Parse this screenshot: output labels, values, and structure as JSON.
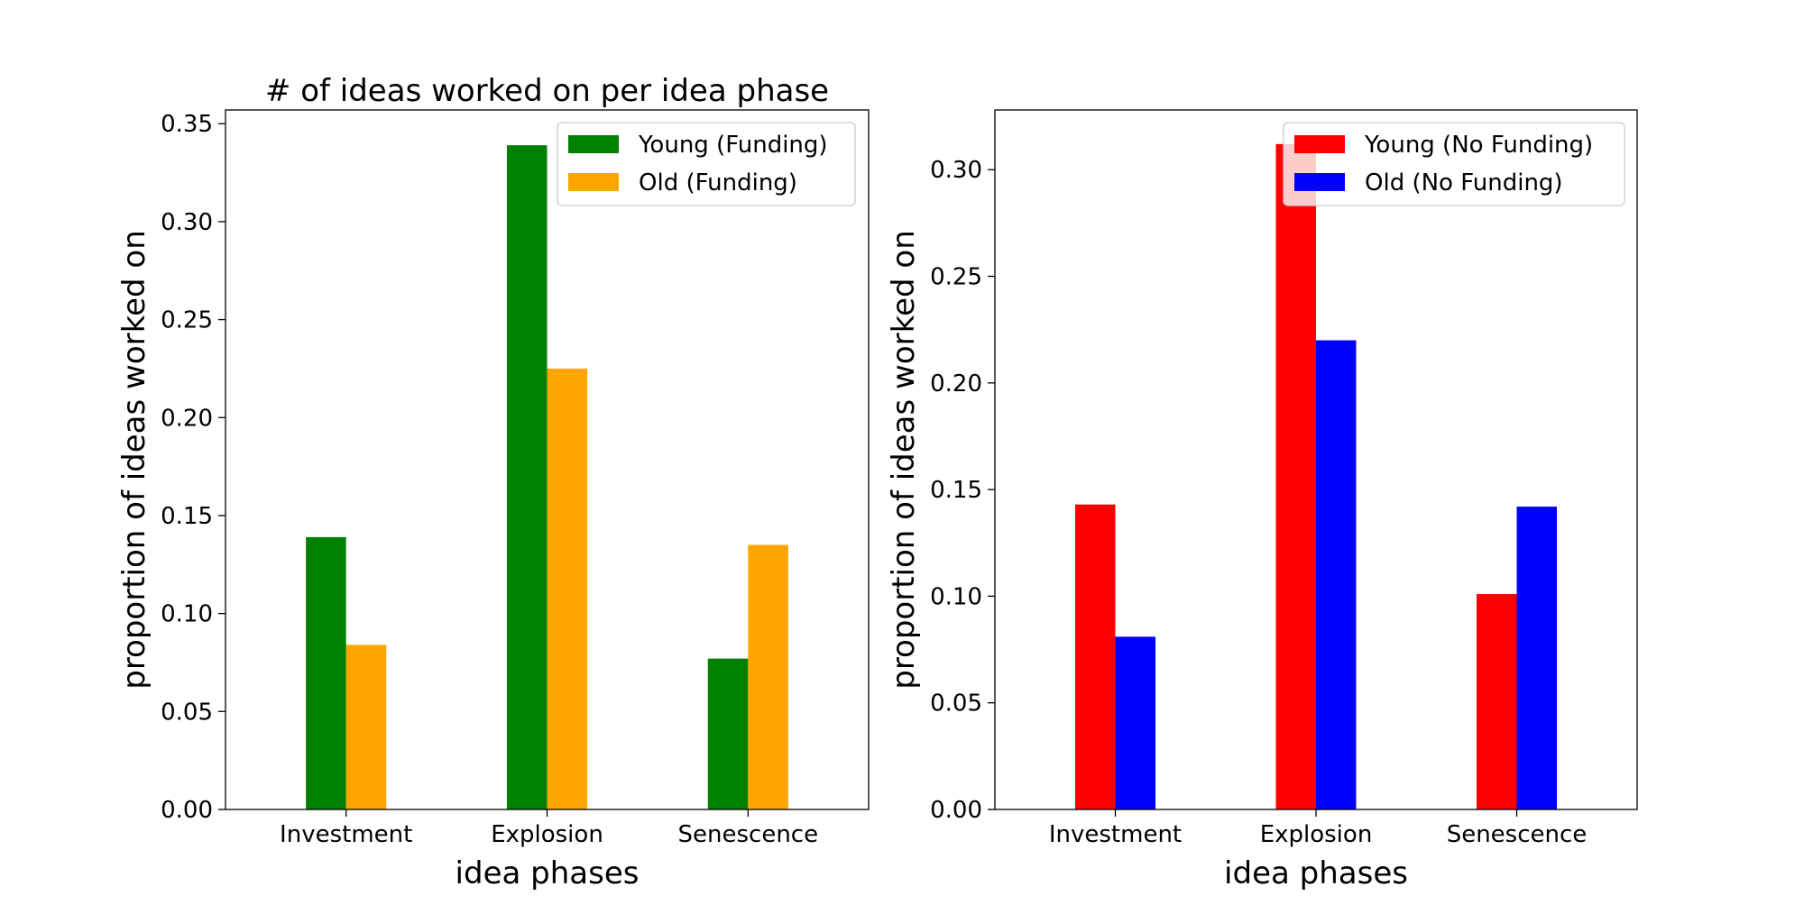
{
  "chart_data": [
    {
      "type": "bar",
      "title": "# of ideas worked on per idea phase",
      "xlabel": "idea phases",
      "ylabel": "proportion of ideas worked on",
      "categories": [
        "Investment",
        "Explosion",
        "Senescence"
      ],
      "ylim": [
        0,
        0.357
      ],
      "yticks": [
        "0.00",
        "0.05",
        "0.10",
        "0.15",
        "0.20",
        "0.25",
        "0.30",
        "0.35"
      ],
      "grid": false,
      "legend_position": "top-right",
      "series": [
        {
          "name": "Young (Funding)",
          "color": "#008000",
          "values": [
            0.139,
            0.339,
            0.077
          ]
        },
        {
          "name": "Old (Funding)",
          "color": "#ffa500",
          "values": [
            0.084,
            0.225,
            0.135
          ]
        }
      ]
    },
    {
      "type": "bar",
      "title": "",
      "xlabel": "idea phases",
      "ylabel": "proportion of ideas worked on",
      "categories": [
        "Investment",
        "Explosion",
        "Senescence"
      ],
      "ylim": [
        0,
        0.328
      ],
      "yticks": [
        "0.00",
        "0.05",
        "0.10",
        "0.15",
        "0.20",
        "0.25",
        "0.30"
      ],
      "grid": false,
      "legend_position": "top-right",
      "series": [
        {
          "name": "Young (No Funding)",
          "color": "#ff0000",
          "values": [
            0.143,
            0.312,
            0.101
          ]
        },
        {
          "name": "Old (No Funding)",
          "color": "#0000ff",
          "values": [
            0.081,
            0.22,
            0.142
          ]
        }
      ]
    }
  ]
}
